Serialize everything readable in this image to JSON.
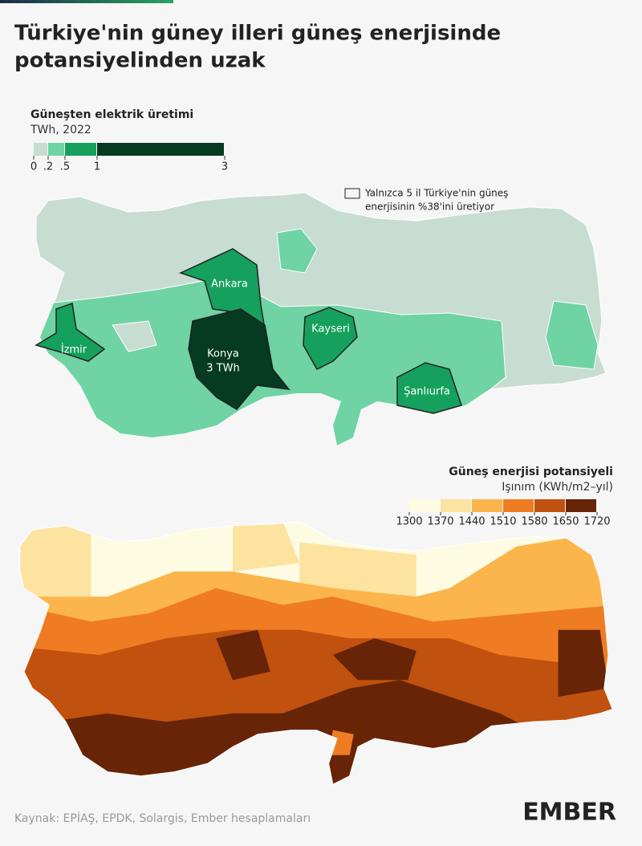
{
  "header": {
    "title_lines": [
      "Türkiye'nin güney illeri güneş enerjisinde",
      "potansiyelinden uzak"
    ]
  },
  "map1": {
    "legend_title": "Güneşten elektrik üretimi",
    "legend_unit": "TWh, 2022",
    "legend_ticks": [
      0,
      {
        "value": 0.2,
        "label": ".2"
      },
      {
        "value": 0.5,
        "label": ".5"
      },
      1,
      3
    ],
    "legend_colors": [
      "#c8ddd2",
      "#6fd3a3",
      "#16a05d",
      "#063a21"
    ],
    "annotation_lines": [
      "Yalnızca 5 il Türkiye'nin güneş",
      "enerjisinin %38'ini üretiyor"
    ],
    "provinces": [
      {
        "name": "Ankara"
      },
      {
        "name": "İzmir"
      },
      {
        "name": "Kayseri"
      },
      {
        "name": "Şanlıurfa"
      },
      {
        "name": "Konya",
        "value": 3,
        "value_label": "3 TWh"
      }
    ]
  },
  "map2": {
    "legend_title": "Güneş enerjisi potansiyeli",
    "legend_unit": "Işınım (KWh/m2–yıl)",
    "legend_ticks": [
      1300,
      1370,
      1440,
      1510,
      1580,
      1650,
      1720
    ],
    "legend_colors": [
      "#fefbe3",
      "#fde3a0",
      "#fbb54c",
      "#ef7c22",
      "#c1510f",
      "#672407"
    ]
  },
  "footer": {
    "source": "Kaynak: EPİAŞ, EPDK, Solargis, Ember hesaplamaları",
    "logo": "EMBER"
  }
}
